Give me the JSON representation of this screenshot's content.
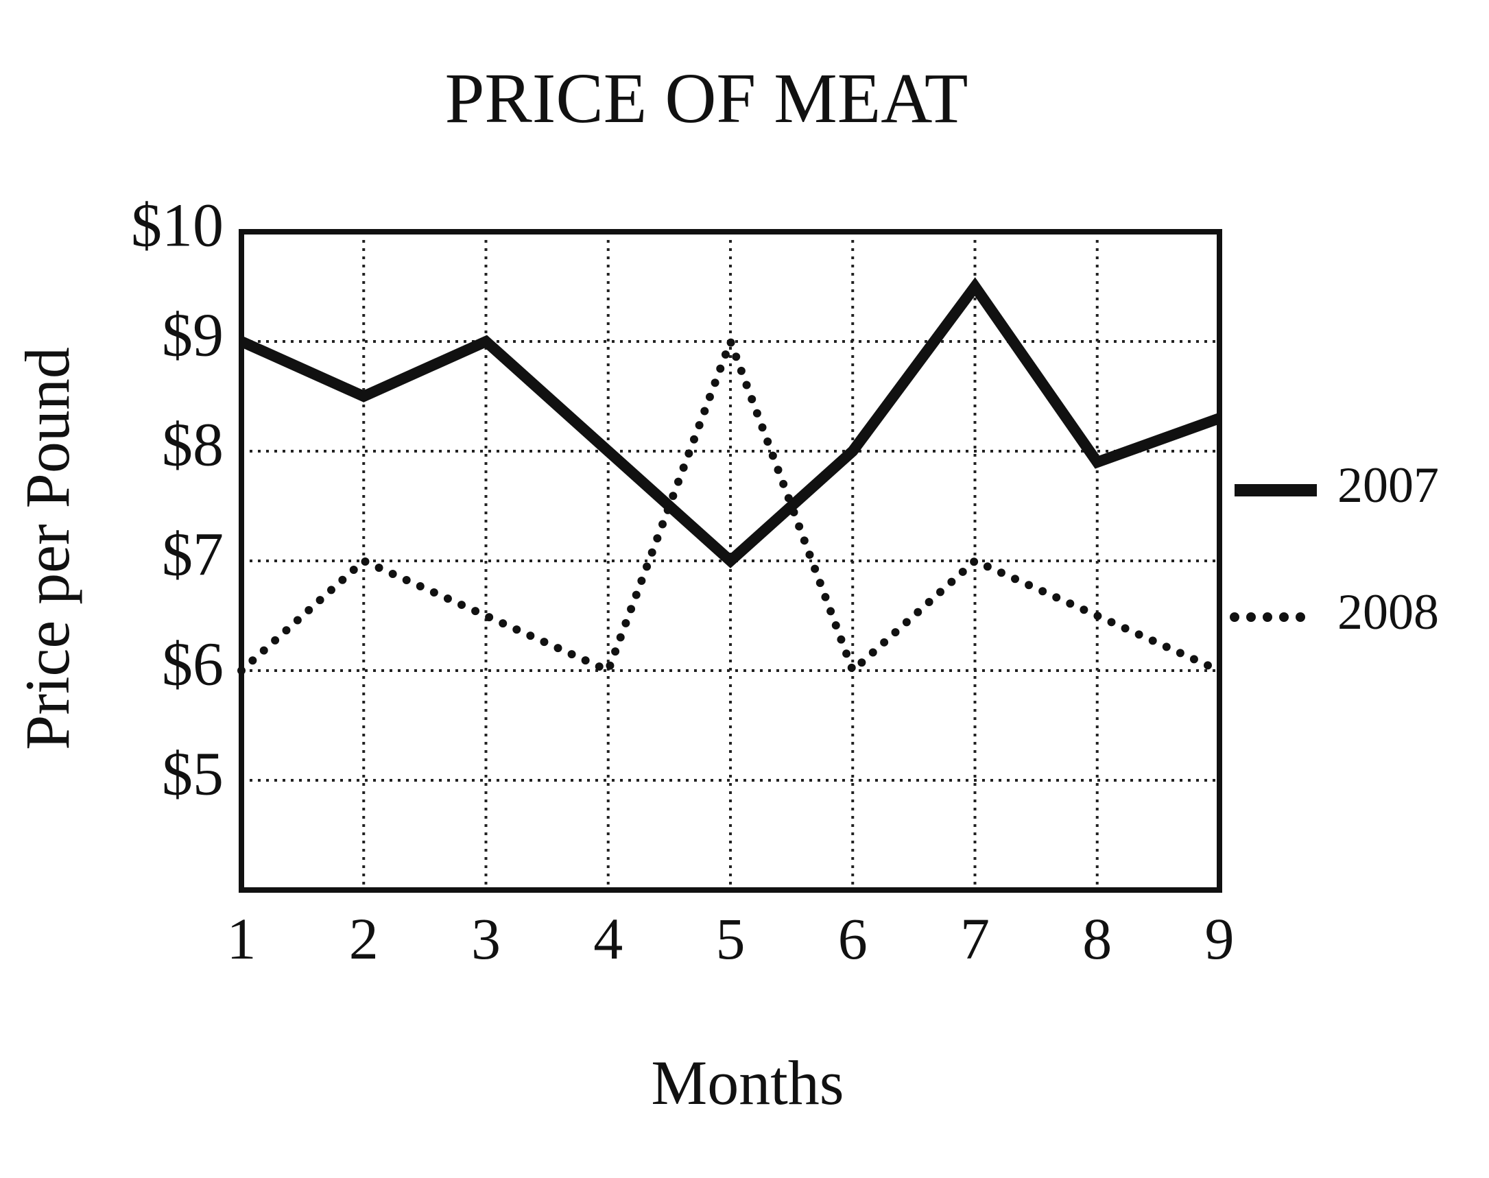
{
  "chart_data": {
    "type": "line",
    "title": "PRICE OF MEAT",
    "xlabel": "Months",
    "ylabel": "Price per Pound",
    "x": [
      1,
      2,
      3,
      4,
      5,
      6,
      7,
      8,
      9
    ],
    "x_tick_labels": [
      "1",
      "2",
      "3",
      "4",
      "5",
      "6",
      "7",
      "8",
      "9"
    ],
    "y_ticks": [
      5,
      6,
      7,
      8,
      9,
      10
    ],
    "y_tick_labels": [
      "$5",
      "$6",
      "$7",
      "$8",
      "$9",
      "$10"
    ],
    "xlim": [
      1,
      9
    ],
    "ylim": [
      4,
      10
    ],
    "grid": true,
    "legend_position": "right",
    "series": [
      {
        "name": "2007",
        "style": "solid",
        "color": "#111111",
        "values": [
          9,
          8.5,
          9,
          8,
          7,
          8,
          9.5,
          7.9,
          8.3
        ]
      },
      {
        "name": "2008",
        "style": "dotted",
        "color": "#111111",
        "values": [
          6,
          7,
          6.5,
          6,
          9,
          6,
          7,
          6.5,
          6
        ]
      }
    ]
  }
}
